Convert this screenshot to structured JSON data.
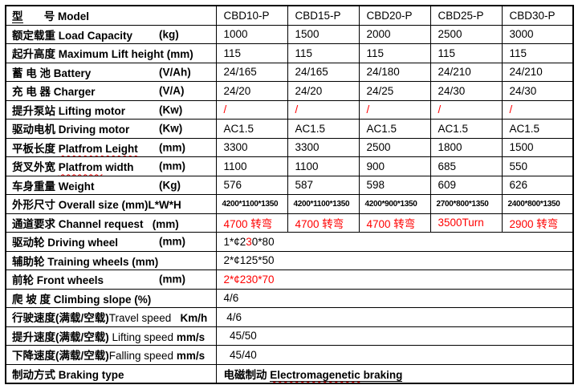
{
  "colors": {
    "red": "#ff0000",
    "text": "#000000",
    "border": "#000000",
    "background": "#ffffff"
  },
  "table": {
    "rows": [
      {
        "name": "model",
        "label": [
          {
            "t": "型",
            "u": true
          },
          {
            "t": "       号 "
          },
          {
            "t": "Model"
          }
        ],
        "values": [
          "CBD10-P",
          "CBD15-P",
          "CBD20-P",
          "CBD25-P",
          "CBD30-P"
        ]
      },
      {
        "name": "load-capacity",
        "label": [
          {
            "t": "额定载重 Load Capacity"
          }
        ],
        "unit": "(kg)",
        "values": [
          "1000",
          "1500",
          "2000",
          "2500",
          "3000"
        ]
      },
      {
        "name": "max-lift-height",
        "label": [
          {
            "t": "起升高度 Maximum Lift height (mm)"
          }
        ],
        "values": [
          "115",
          "115",
          "115",
          "115",
          "115"
        ]
      },
      {
        "name": "battery",
        "label": [
          {
            "t": "蓄 电 池 Battery"
          }
        ],
        "unit": "(V/Ah)",
        "values": [
          "24/165",
          "24/165",
          "24/180",
          "24/210",
          "24/210"
        ]
      },
      {
        "name": "charger",
        "label": [
          {
            "t": "充 电 器 Charger"
          }
        ],
        "unit": "(V/A)",
        "values": [
          "24/20",
          "24/20",
          "24/25",
          "24/30",
          "24/30"
        ]
      },
      {
        "name": "lifting-motor",
        "label": [
          {
            "t": "提升泵站 Lifting motor"
          }
        ],
        "unit": "(Kw)",
        "values": [
          "/",
          "/",
          "/",
          "/",
          "/"
        ],
        "vclass": "red"
      },
      {
        "name": "driving-motor",
        "label": [
          {
            "t": "驱动电机 Driving motor"
          }
        ],
        "unit": "(Kw)",
        "values": [
          "AC1.5",
          "AC1.5",
          "AC1.5",
          "AC1.5",
          "AC1.5"
        ]
      },
      {
        "name": "platform-length",
        "label": [
          {
            "t": "平板长度 "
          },
          {
            "t": "Platfrom Leight",
            "w": true
          }
        ],
        "unit": "(mm)",
        "values": [
          "3300",
          "3300",
          "2500",
          "1800",
          "1500"
        ]
      },
      {
        "name": "platform-width",
        "label": [
          {
            "t": "货叉外宽 "
          },
          {
            "t": "Platfrom",
            "w": true
          },
          {
            "t": " width"
          }
        ],
        "unit": "(mm)",
        "values": [
          "1100",
          "1100",
          "900",
          "685",
          "550"
        ]
      },
      {
        "name": "weight",
        "label": [
          {
            "t": "车身重量 Weight"
          }
        ],
        "unit": "(Kg)",
        "values": [
          "576",
          "587",
          "598",
          "609",
          "626"
        ]
      },
      {
        "name": "overall-size",
        "label": [
          {
            "t": "外形尺寸 Overall size (mm)L*W*H"
          }
        ],
        "values": [
          "4200*1100*1350",
          "4200*1100*1350",
          "4200*900*1350",
          "2700*800*1350",
          "2400*800*1350"
        ],
        "vclass": "smallv"
      },
      {
        "name": "channel-request",
        "label": [
          {
            "t": "通道要求 Channel request   (mm)"
          }
        ],
        "values": [
          "4700 转弯",
          "4700 转弯",
          "4700 转弯",
          "3500Turn",
          "2900 转弯"
        ],
        "vclass": "red"
      },
      {
        "name": "driving-wheel",
        "label": [
          {
            "t": "驱动轮 Driving wheel"
          }
        ],
        "unit": "(mm)",
        "span_value": [
          {
            "t": "1*¢2"
          },
          {
            "t": "3",
            "red": true
          },
          {
            "t": "0*80"
          }
        ]
      },
      {
        "name": "training-wheels",
        "label": [
          {
            "t": "辅助轮 Training wheels (mm)"
          }
        ],
        "span_value": [
          {
            "t": "2*¢125*50"
          }
        ]
      },
      {
        "name": "front-wheels",
        "label": [
          {
            "t": "前轮 Front wheels"
          }
        ],
        "unit": "(mm)",
        "span_value": [
          {
            "t": "2*¢230*70",
            "red": true
          }
        ]
      },
      {
        "name": "climbing-slope",
        "label": [
          {
            "t": "爬 坡 度 Climbing slope (%)"
          }
        ],
        "span_value": [
          {
            "t": "4/6"
          }
        ]
      },
      {
        "name": "travel-speed",
        "label": [
          {
            "t": "行驶速度(满载/空载)"
          },
          {
            "t": "Travel speed",
            "nb": true
          },
          {
            "t": "   Km/h"
          }
        ],
        "span_value": [
          {
            "t": " 4/6"
          }
        ]
      },
      {
        "name": "lifting-speed",
        "label": [
          {
            "t": "提升速度(满载/空载) "
          },
          {
            "t": "Lifting speed ",
            "nb": true
          },
          {
            "t": "mm/s"
          }
        ],
        "span_value": [
          {
            "t": "  45/50"
          }
        ]
      },
      {
        "name": "falling-speed",
        "label": [
          {
            "t": "下降速度(满载/空载)"
          },
          {
            "t": "Falling speed ",
            "nb": true
          },
          {
            "t": "mm/s"
          }
        ],
        "span_value": [
          {
            "t": "  45/40"
          }
        ]
      },
      {
        "name": "braking-type",
        "label": [
          {
            "t": "制动方式 Braking type"
          }
        ],
        "span_value": [
          {
            "t": "电磁制动 "
          },
          {
            "t": "Electromagenetic",
            "u": true,
            "w": true
          },
          {
            "t": " braking",
            "u": true
          }
        ],
        "vclass": "boldv"
      }
    ]
  }
}
